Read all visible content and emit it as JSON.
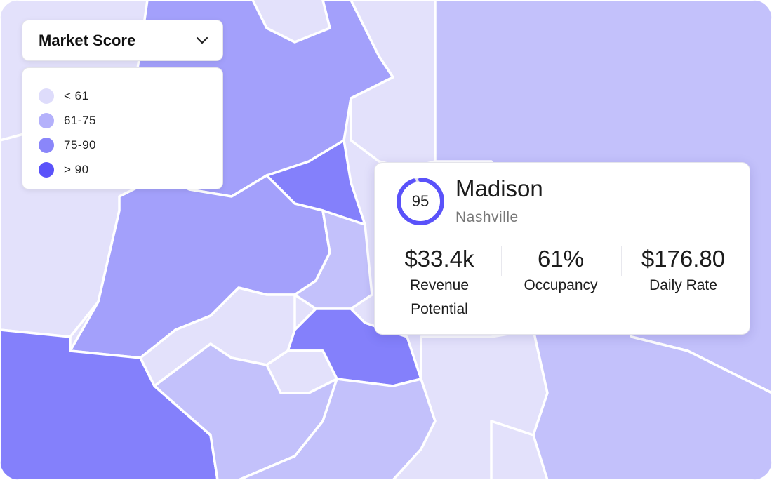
{
  "colors": {
    "lt61": "#e2e0fb",
    "r61_75": "#c3c1fb",
    "r75_90": "#a3a0fb",
    "gt90": "#8480fb",
    "accent": "#5a52fa"
  },
  "dropdown": {
    "label": "Market Score",
    "icon": "chevron-down-icon"
  },
  "legend": {
    "items": [
      {
        "label": "< 61",
        "color": "#dedcfb"
      },
      {
        "label": "61-75",
        "color": "#b4b1fb"
      },
      {
        "label": "75-90",
        "color": "#8a86fa"
      },
      {
        "label": "> 90",
        "color": "#5a52fa"
      }
    ]
  },
  "popup": {
    "score": "95",
    "score_fraction": 0.95,
    "name": "Madison",
    "city": "Nashville",
    "stats": [
      {
        "value": "$33.4k",
        "label": "Revenue Potential"
      },
      {
        "value": "61%",
        "label": "Occupancy"
      },
      {
        "value": "$176.80",
        "label": "Daily Rate"
      }
    ]
  }
}
